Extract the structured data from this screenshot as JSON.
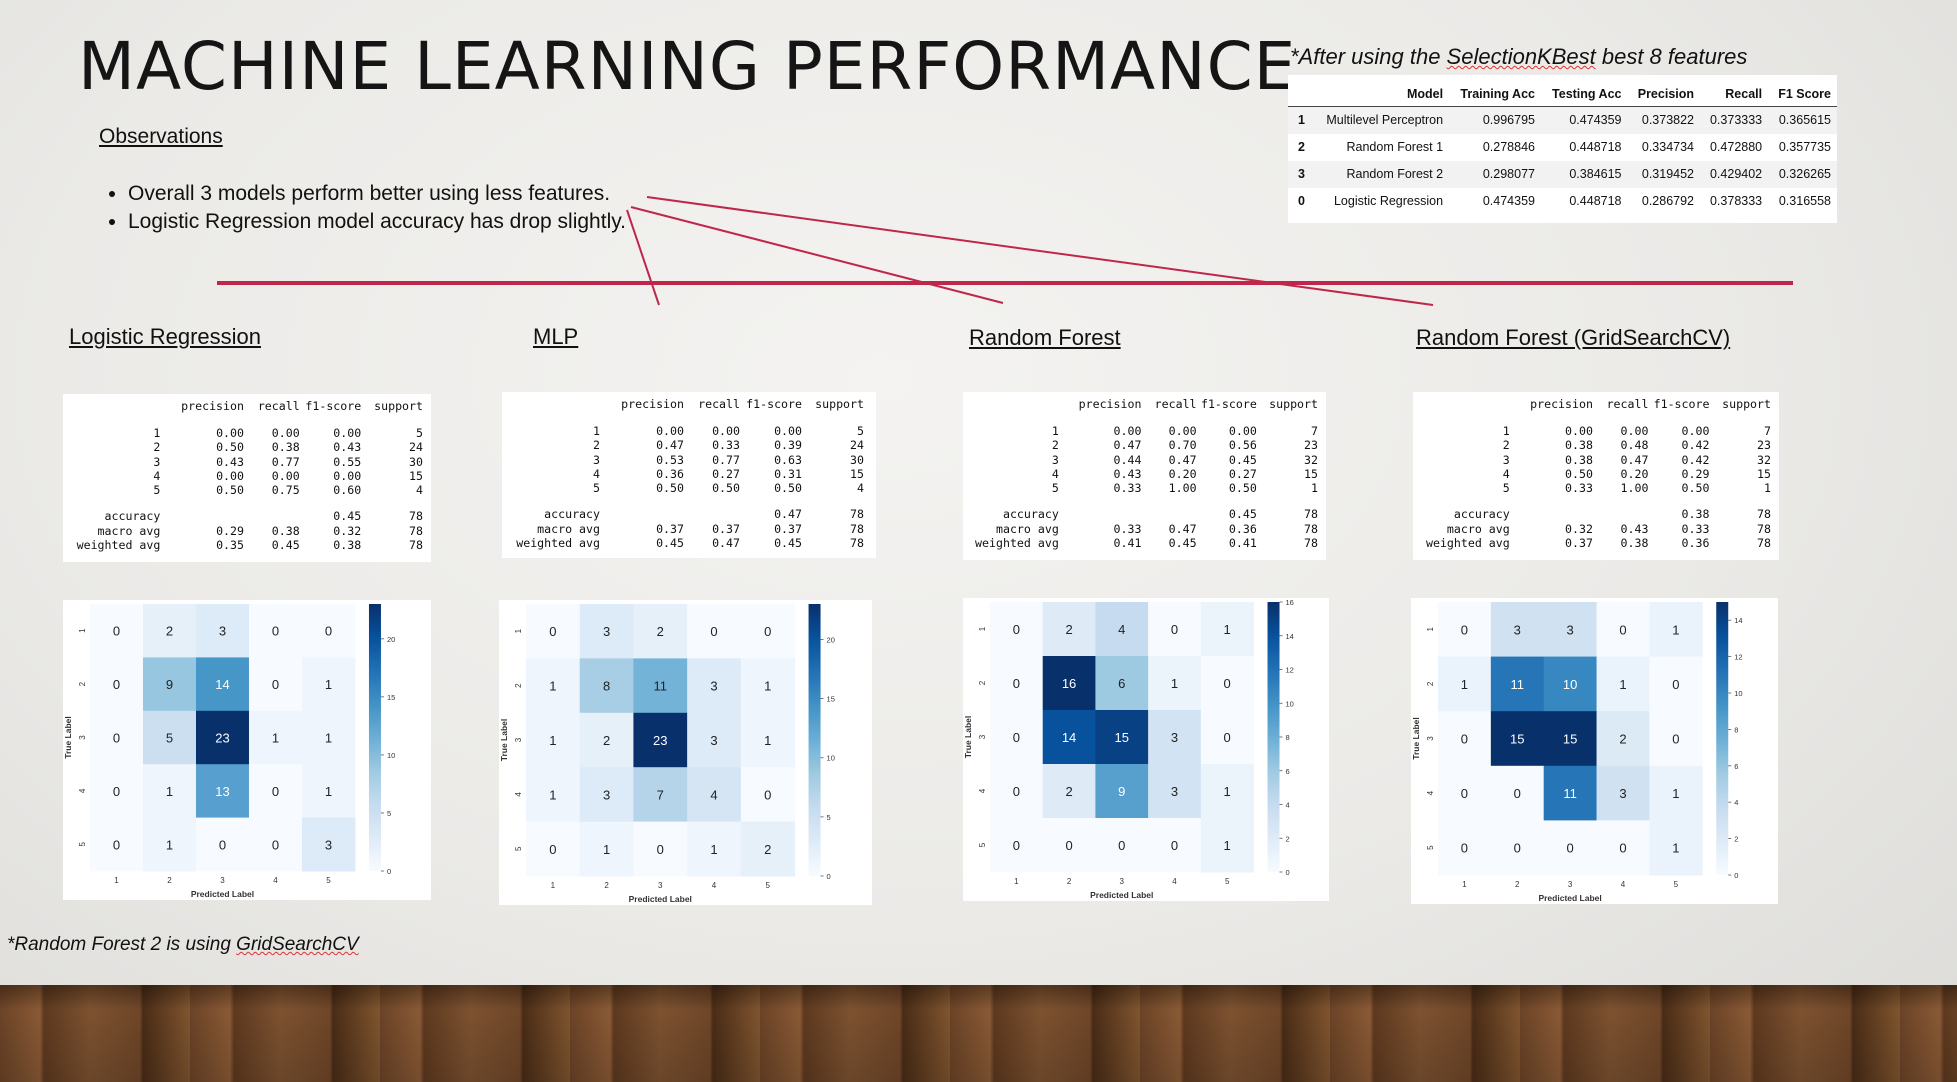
{
  "title": "MACHINE LEARNING PERFORMANCE",
  "observations": {
    "heading": "Observations",
    "bullets": [
      "Overall 3 models perform better using less features.",
      "Logistic Regression model accuracy has drop slightly."
    ]
  },
  "note_top": {
    "prefix": "*After using the ",
    "highlight": "SelectionKBest",
    "suffix": " best 8 features"
  },
  "note_bottom": {
    "prefix": "*Random Forest 2 is using ",
    "highlight": "GridSearchCV"
  },
  "summary_table": {
    "columns": [
      "",
      "Model",
      "Training Acc",
      "Testing Acc",
      "Precision",
      "Recall",
      "F1 Score"
    ],
    "rows": [
      [
        "1",
        "Multilevel Perceptron",
        "0.996795",
        "0.474359",
        "0.373822",
        "0.373333",
        "0.365615"
      ],
      [
        "2",
        "Random Forest 1",
        "0.278846",
        "0.448718",
        "0.334734",
        "0.472880",
        "0.357735"
      ],
      [
        "3",
        "Random Forest 2",
        "0.298077",
        "0.384615",
        "0.319452",
        "0.429402",
        "0.326265"
      ],
      [
        "0",
        "Logistic Regression",
        "0.474359",
        "0.448718",
        "0.286792",
        "0.378333",
        "0.316558"
      ]
    ]
  },
  "colors": {
    "accent_line": "#c0264a",
    "cm_dark": "#08306b",
    "cm_light": "#f7fbff"
  },
  "report_headers": [
    "precision",
    "recall",
    "f1-score",
    "support"
  ],
  "panels": [
    {
      "title": "Logistic Regression",
      "report": {
        "classes": [
          [
            "1",
            "0.00",
            "0.00",
            "0.00",
            "5"
          ],
          [
            "2",
            "0.50",
            "0.38",
            "0.43",
            "24"
          ],
          [
            "3",
            "0.43",
            "0.77",
            "0.55",
            "30"
          ],
          [
            "4",
            "0.00",
            "0.00",
            "0.00",
            "15"
          ],
          [
            "5",
            "0.50",
            "0.75",
            "0.60",
            "4"
          ]
        ],
        "summary": [
          [
            "accuracy",
            "",
            "",
            "0.45",
            "78"
          ],
          [
            "macro avg",
            "0.29",
            "0.38",
            "0.32",
            "78"
          ],
          [
            "weighted avg",
            "0.35",
            "0.45",
            "0.38",
            "78"
          ]
        ]
      },
      "confusion": {
        "matrix": [
          [
            0,
            2,
            3,
            0,
            0
          ],
          [
            0,
            9,
            14,
            0,
            1
          ],
          [
            0,
            5,
            23,
            1,
            1
          ],
          [
            0,
            1,
            13,
            0,
            1
          ],
          [
            0,
            1,
            0,
            0,
            3
          ]
        ],
        "max": 23,
        "colorbar_ticks": [
          "0",
          "5",
          "10",
          "15",
          "20"
        ],
        "xlabel": "Predicted Label",
        "ylabel": "True Label",
        "tick_labels": [
          "1",
          "2",
          "3",
          "4",
          "5"
        ]
      }
    },
    {
      "title": "MLP",
      "report": {
        "classes": [
          [
            "1",
            "0.00",
            "0.00",
            "0.00",
            "5"
          ],
          [
            "2",
            "0.47",
            "0.33",
            "0.39",
            "24"
          ],
          [
            "3",
            "0.53",
            "0.77",
            "0.63",
            "30"
          ],
          [
            "4",
            "0.36",
            "0.27",
            "0.31",
            "15"
          ],
          [
            "5",
            "0.50",
            "0.50",
            "0.50",
            "4"
          ]
        ],
        "summary": [
          [
            "accuracy",
            "",
            "",
            "0.47",
            "78"
          ],
          [
            "macro avg",
            "0.37",
            "0.37",
            "0.37",
            "78"
          ],
          [
            "weighted avg",
            "0.45",
            "0.47",
            "0.45",
            "78"
          ]
        ]
      },
      "confusion": {
        "matrix": [
          [
            0,
            3,
            2,
            0,
            0
          ],
          [
            1,
            8,
            11,
            3,
            1
          ],
          [
            1,
            2,
            23,
            3,
            1
          ],
          [
            1,
            3,
            7,
            4,
            0
          ],
          [
            0,
            1,
            0,
            1,
            2
          ]
        ],
        "max": 23,
        "colorbar_ticks": [
          "0",
          "5",
          "10",
          "15",
          "20"
        ],
        "xlabel": "Predicted Label",
        "ylabel": "True Label",
        "tick_labels": [
          "1",
          "2",
          "3",
          "4",
          "5"
        ]
      }
    },
    {
      "title": "Random Forest",
      "report": {
        "classes": [
          [
            "1",
            "0.00",
            "0.00",
            "0.00",
            "7"
          ],
          [
            "2",
            "0.47",
            "0.70",
            "0.56",
            "23"
          ],
          [
            "3",
            "0.44",
            "0.47",
            "0.45",
            "32"
          ],
          [
            "4",
            "0.43",
            "0.20",
            "0.27",
            "15"
          ],
          [
            "5",
            "0.33",
            "1.00",
            "0.50",
            "1"
          ]
        ],
        "summary": [
          [
            "accuracy",
            "",
            "",
            "0.45",
            "78"
          ],
          [
            "macro avg",
            "0.33",
            "0.47",
            "0.36",
            "78"
          ],
          [
            "weighted avg",
            "0.41",
            "0.45",
            "0.41",
            "78"
          ]
        ]
      },
      "confusion": {
        "matrix": [
          [
            0,
            2,
            4,
            0,
            1
          ],
          [
            0,
            16,
            6,
            1,
            0
          ],
          [
            0,
            14,
            15,
            3,
            0
          ],
          [
            0,
            2,
            9,
            3,
            1
          ],
          [
            0,
            0,
            0,
            0,
            1
          ]
        ],
        "max": 16,
        "colorbar_ticks": [
          "0",
          "2",
          "4",
          "6",
          "8",
          "10",
          "12",
          "14",
          "16"
        ],
        "xlabel": "Predicted Label",
        "ylabel": "True Label",
        "tick_labels": [
          "1",
          "2",
          "3",
          "4",
          "5"
        ]
      }
    },
    {
      "title": "Random Forest (GridSearchCV)",
      "report": {
        "classes": [
          [
            "1",
            "0.00",
            "0.00",
            "0.00",
            "7"
          ],
          [
            "2",
            "0.38",
            "0.48",
            "0.42",
            "23"
          ],
          [
            "3",
            "0.38",
            "0.47",
            "0.42",
            "32"
          ],
          [
            "4",
            "0.50",
            "0.20",
            "0.29",
            "15"
          ],
          [
            "5",
            "0.33",
            "1.00",
            "0.50",
            "1"
          ]
        ],
        "summary": [
          [
            "accuracy",
            "",
            "",
            "0.38",
            "78"
          ],
          [
            "macro avg",
            "0.32",
            "0.43",
            "0.33",
            "78"
          ],
          [
            "weighted avg",
            "0.37",
            "0.38",
            "0.36",
            "78"
          ]
        ]
      },
      "confusion": {
        "matrix": [
          [
            0,
            3,
            3,
            0,
            1
          ],
          [
            1,
            11,
            10,
            1,
            0
          ],
          [
            0,
            15,
            15,
            2,
            0
          ],
          [
            0,
            0,
            11,
            3,
            1
          ],
          [
            0,
            0,
            0,
            0,
            1
          ]
        ],
        "max": 15,
        "colorbar_ticks": [
          "0",
          "2",
          "4",
          "6",
          "8",
          "10",
          "12",
          "14"
        ],
        "xlabel": "Predicted Label",
        "ylabel": "True Label",
        "tick_labels": [
          "1",
          "2",
          "3",
          "4",
          "5"
        ]
      }
    }
  ]
}
